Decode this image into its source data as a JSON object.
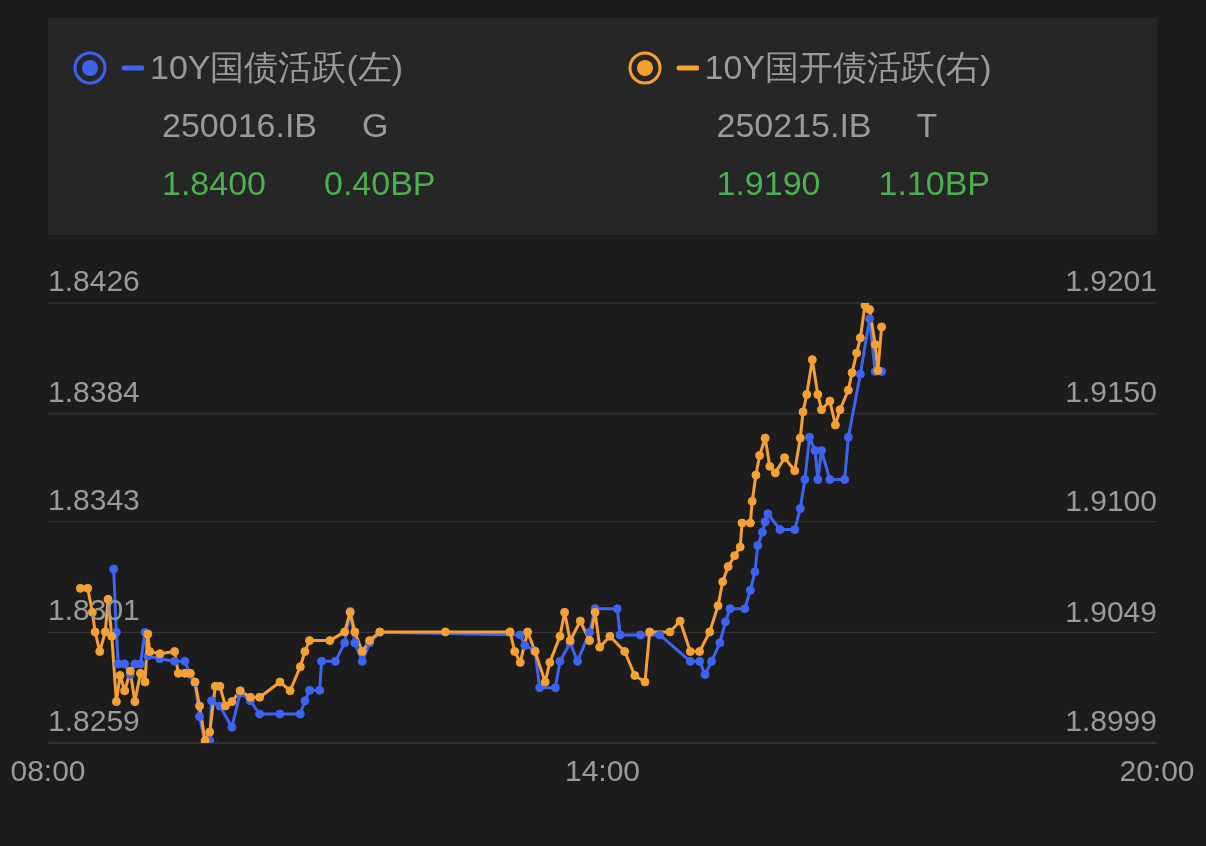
{
  "chart_data": {
    "type": "line",
    "legend": "top",
    "grid": "y",
    "marker": "circle",
    "xlim": [
      8,
      20
    ],
    "xticks": [
      {
        "value": 8,
        "label": "08:00"
      },
      {
        "value": 14,
        "label": "14:00"
      },
      {
        "value": 20,
        "label": "20:00"
      }
    ],
    "ylim": [
      1.8259,
      1.8426
    ],
    "yticks": [
      1.8259,
      1.8301,
      1.8343,
      1.8384,
      1.8426
    ],
    "y2lim": [
      1.8999,
      1.9201
    ],
    "y2ticks": [
      1.8999,
      1.9049,
      {
        "value": 1.91,
        "label": "1.9100"
      },
      {
        "value": 1.915,
        "label": "1.9150"
      },
      1.9201
    ],
    "annotations": [
      "250016.IB",
      "G",
      "1.8400",
      "0.40BP",
      "250215.IB",
      "T",
      "1.9190",
      "1.10BP"
    ],
    "series": [
      {
        "name": "10Y国债活跃(左)",
        "color": "#3e63f0",
        "axis": "y",
        "x": [
          8.71,
          8.74,
          8.76,
          8.83,
          8.89,
          8.94,
          9.0,
          9.05,
          9.08,
          9.21,
          9.37,
          9.48,
          9.54,
          9.59,
          9.64,
          9.7,
          9.75,
          9.77,
          9.86,
          9.99,
          10.08,
          10.19,
          10.29,
          10.51,
          10.73,
          10.78,
          10.83,
          10.94,
          10.96,
          11.11,
          11.21,
          11.27,
          11.32,
          11.4,
          11.48,
          11.59,
          13.11,
          13.16,
          13.27,
          13.32,
          13.49,
          13.54,
          13.65,
          13.73,
          13.86,
          13.92,
          14.16,
          14.19,
          14.41,
          14.62,
          14.95,
          15.05,
          15.11,
          15.18,
          15.27,
          15.33,
          15.38,
          15.54,
          15.6,
          15.65,
          15.68,
          15.73,
          15.76,
          15.79,
          15.92,
          16.08,
          16.14,
          16.19,
          16.24,
          16.3,
          16.33,
          16.37,
          16.46,
          16.62,
          16.66,
          16.79,
          16.89,
          16.95,
          17.02
        ],
        "values": [
          1.8325,
          1.8301,
          1.8289,
          1.8289,
          1.8285,
          1.8289,
          1.8289,
          1.8301,
          1.8292,
          1.8291,
          1.829,
          1.829,
          1.8285,
          1.8282,
          1.8269,
          1.8259,
          1.826,
          1.8275,
          1.8273,
          1.8265,
          1.8278,
          1.8275,
          1.827,
          1.827,
          1.827,
          1.8275,
          1.8279,
          1.8279,
          1.829,
          1.829,
          1.8297,
          1.8309,
          1.8297,
          1.829,
          1.8297,
          1.8301,
          1.83,
          1.8296,
          1.8294,
          1.828,
          1.828,
          1.829,
          1.8297,
          1.829,
          1.8301,
          1.831,
          1.831,
          1.83,
          1.83,
          1.83,
          1.829,
          1.829,
          1.8285,
          1.829,
          1.8297,
          1.8305,
          1.831,
          1.831,
          1.8317,
          1.8324,
          1.8334,
          1.8339,
          1.8343,
          1.8346,
          1.834,
          1.834,
          1.8348,
          1.8359,
          1.8375,
          1.837,
          1.8359,
          1.837,
          1.8359,
          1.8359,
          1.8375,
          1.8399,
          1.842,
          1.84,
          1.84
        ]
      },
      {
        "name": "10Y国开债活跃(右)",
        "color": "#f5a034",
        "axis": "y2",
        "x": [
          8.35,
          8.43,
          8.48,
          8.51,
          8.56,
          8.62,
          8.65,
          8.69,
          8.74,
          8.78,
          8.83,
          8.89,
          8.94,
          9.0,
          9.05,
          9.08,
          9.1,
          9.21,
          9.37,
          9.41,
          9.48,
          9.54,
          9.59,
          9.64,
          9.7,
          9.75,
          9.81,
          9.86,
          9.92,
          9.99,
          10.08,
          10.19,
          10.29,
          10.51,
          10.62,
          10.73,
          10.78,
          10.83,
          11.05,
          11.21,
          11.27,
          11.32,
          11.4,
          11.48,
          11.59,
          12.3,
          13.0,
          13.05,
          13.11,
          13.19,
          13.27,
          13.38,
          13.43,
          13.54,
          13.59,
          13.65,
          13.76,
          13.86,
          13.92,
          13.97,
          14.08,
          14.24,
          14.35,
          14.46,
          14.51,
          14.73,
          14.84,
          14.95,
          15.05,
          15.16,
          15.25,
          15.3,
          15.36,
          15.43,
          15.49,
          15.51,
          15.6,
          15.62,
          15.66,
          15.7,
          15.76,
          15.81,
          15.87,
          15.97,
          16.08,
          16.14,
          16.17,
          16.21,
          16.27,
          16.33,
          16.37,
          16.46,
          16.52,
          16.57,
          16.66,
          16.7,
          16.75,
          16.79,
          16.84,
          16.89,
          16.95,
          16.98,
          17.02
        ],
        "values": [
          1.907,
          1.907,
          1.9059,
          1.905,
          1.9041,
          1.905,
          1.9065,
          1.9048,
          1.9018,
          1.903,
          1.9023,
          1.9032,
          1.9018,
          1.9031,
          1.9027,
          1.9049,
          1.9041,
          1.904,
          1.9041,
          1.9031,
          1.9031,
          1.9031,
          1.9027,
          1.9016,
          1.9,
          1.9004,
          1.9025,
          1.9025,
          1.9016,
          1.9018,
          1.9023,
          1.902,
          1.902,
          1.9027,
          1.9023,
          1.9034,
          1.9041,
          1.9046,
          1.9046,
          1.905,
          1.9059,
          1.905,
          1.9041,
          1.9046,
          1.905,
          1.905,
          1.905,
          1.9041,
          1.9036,
          1.905,
          1.9041,
          1.9027,
          1.9036,
          1.9048,
          1.9059,
          1.9046,
          1.9055,
          1.9046,
          1.9059,
          1.9043,
          1.9048,
          1.9041,
          1.903,
          1.9027,
          1.905,
          1.905,
          1.9055,
          1.9041,
          1.9041,
          1.905,
          1.9062,
          1.9073,
          1.908,
          1.9085,
          1.9089,
          1.91,
          1.91,
          1.911,
          1.9122,
          1.9131,
          1.9139,
          1.9126,
          1.9123,
          1.913,
          1.9124,
          1.9139,
          1.9151,
          1.9159,
          1.9175,
          1.9159,
          1.9152,
          1.9156,
          1.9145,
          1.9152,
          1.9161,
          1.9169,
          1.9178,
          1.9185,
          1.92,
          1.9198,
          1.9182,
          1.917,
          1.919
        ]
      }
    ]
  }
}
